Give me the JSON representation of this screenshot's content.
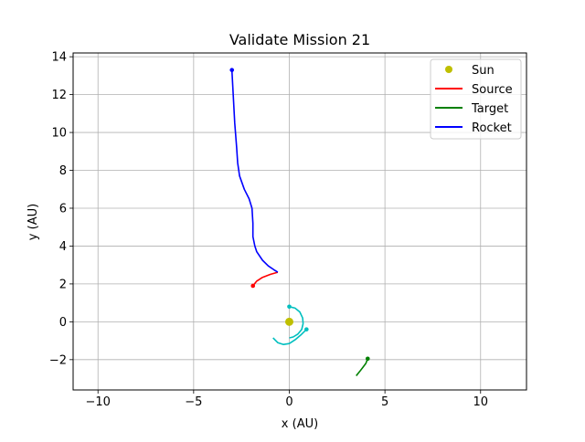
{
  "chart_data": {
    "type": "line",
    "title": "Validate Mission 21",
    "xlabel": "x (AU)",
    "ylabel": "y (AU)",
    "xlim": [
      -11.3,
      12.4
    ],
    "ylim": [
      -3.6,
      14.2
    ],
    "xticks": [
      -10,
      -5,
      0,
      5,
      10
    ],
    "yticks": [
      -2,
      0,
      2,
      4,
      6,
      8,
      10,
      12,
      14
    ],
    "xtick_labels": [
      "−10",
      "−5",
      "0",
      "5",
      "10"
    ],
    "ytick_labels": [
      "−2",
      "0",
      "2",
      "4",
      "6",
      "8",
      "10",
      "12",
      "14"
    ],
    "grid": true,
    "legend_position": "top-right",
    "legend": [
      {
        "label": "Sun",
        "color": "#bfbf00",
        "kind": "marker"
      },
      {
        "label": "Source",
        "color": "#ff0000",
        "kind": "line"
      },
      {
        "label": "Target",
        "color": "#008000",
        "kind": "line"
      },
      {
        "label": "Rocket",
        "color": "#0000ff",
        "kind": "line"
      }
    ],
    "series": [
      {
        "name": "Sun",
        "color": "#bfbf00",
        "kind": "marker",
        "x": [
          0.0
        ],
        "y": [
          0.0
        ]
      },
      {
        "name": "Source",
        "color": "#ff0000",
        "kind": "line",
        "x": [
          -1.9,
          -1.7,
          -1.4,
          -1.0,
          -0.6
        ],
        "y": [
          1.9,
          2.15,
          2.35,
          2.5,
          2.62
        ],
        "endpoint": [
          -1.9,
          1.9
        ]
      },
      {
        "name": "Target",
        "color": "#008000",
        "kind": "line",
        "x": [
          3.5,
          3.7,
          3.85,
          4.0,
          4.1
        ],
        "y": [
          -2.85,
          -2.6,
          -2.4,
          -2.2,
          -1.95
        ],
        "endpoint": [
          4.1,
          -1.95
        ]
      },
      {
        "name": "Rocket",
        "color": "#0000ff",
        "kind": "line",
        "x": [
          -0.6,
          -0.8,
          -1.1,
          -1.4,
          -1.7,
          -1.8,
          -1.9,
          -1.9,
          -1.95,
          -2.1,
          -2.35,
          -2.6,
          -2.7,
          -2.75,
          -2.85,
          -3.0
        ],
        "y": [
          2.62,
          2.75,
          2.95,
          3.25,
          3.7,
          4.0,
          4.5,
          5.2,
          6.0,
          6.5,
          7.0,
          7.7,
          8.4,
          9.2,
          10.5,
          13.3
        ],
        "endpoint": [
          -3.0,
          13.3
        ]
      },
      {
        "name": "",
        "color": "#00bfbf",
        "kind": "line",
        "x": [
          0.0,
          0.3,
          0.55,
          0.7,
          0.72,
          0.65,
          0.45,
          0.2,
          0.0
        ],
        "y": [
          0.8,
          0.72,
          0.52,
          0.2,
          -0.1,
          -0.4,
          -0.65,
          -0.8,
          -0.85
        ],
        "endpoint": [
          0.0,
          0.8
        ]
      },
      {
        "name": "",
        "color": "#00bfbf",
        "kind": "line",
        "x": [
          0.9,
          0.6,
          0.3,
          0.0,
          -0.3,
          -0.6,
          -0.85
        ],
        "y": [
          -0.4,
          -0.7,
          -0.95,
          -1.15,
          -1.2,
          -1.1,
          -0.85
        ],
        "endpoint": [
          0.9,
          -0.4
        ]
      }
    ]
  }
}
